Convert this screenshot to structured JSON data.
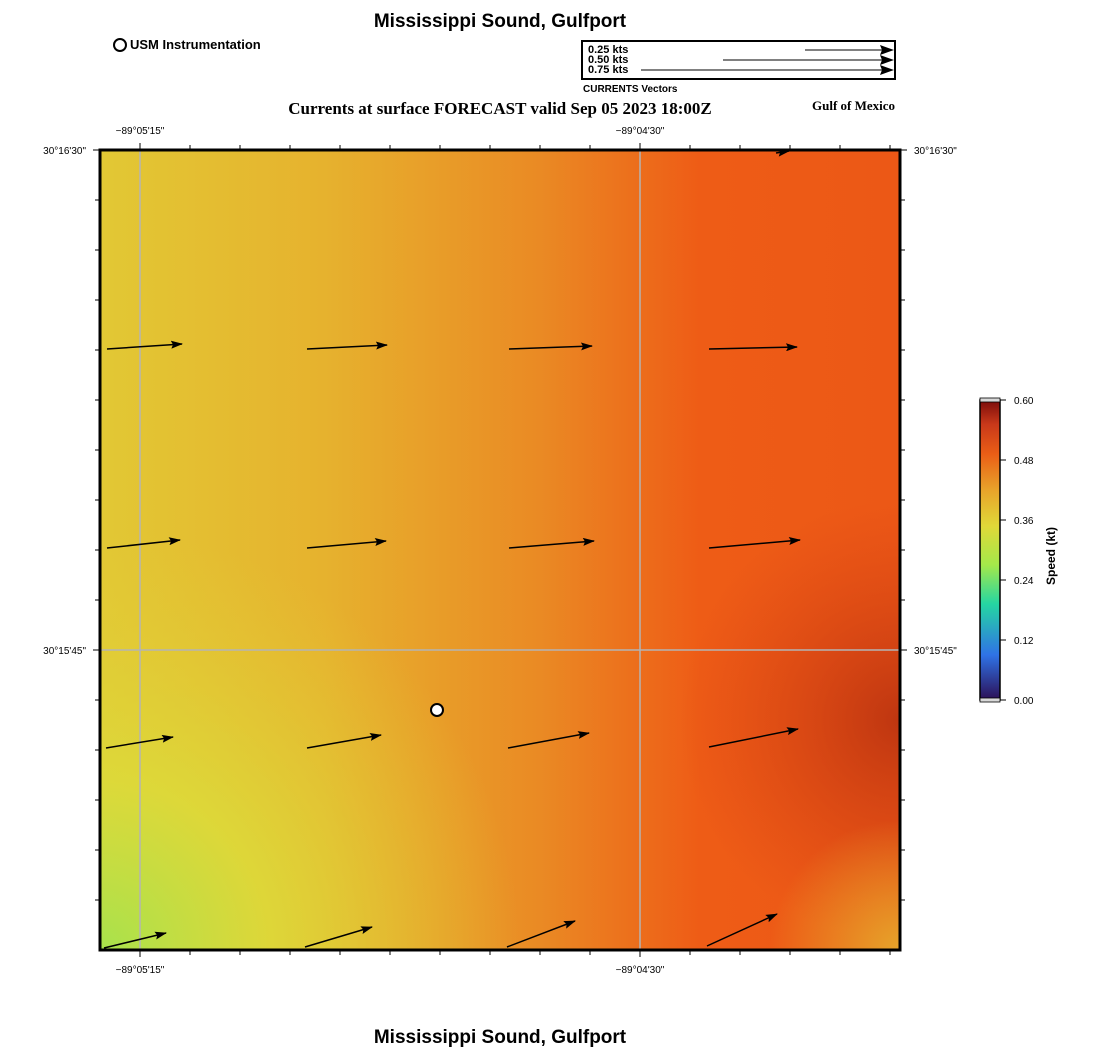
{
  "header": {
    "title": "Mississippi Sound, Gulfport",
    "subtitle": "Currents at surface FORECAST valid Sep 05 2023 18:00Z",
    "region_label": "Gulf of Mexico"
  },
  "footer": {
    "title": "Mississippi Sound, Gulfport"
  },
  "station_legend": {
    "label": "USM Instrumentation"
  },
  "vector_legend": {
    "caption": "CURRENTS Vectors",
    "entries": [
      {
        "label": "0.25 kts",
        "speed": 0.25
      },
      {
        "label": "0.50 kts",
        "speed": 0.5
      },
      {
        "label": "0.75 kts",
        "speed": 0.75
      }
    ]
  },
  "map": {
    "x_ticks": [
      "−89°05'15\"",
      "−89°04'30\""
    ],
    "y_ticks": [
      "30°16'30\"",
      "30°15'45\""
    ]
  },
  "colorbar": {
    "label": "Speed (kt)",
    "ticks": [
      "0.60",
      "0.48",
      "0.36",
      "0.24",
      "0.12",
      "0.00"
    ],
    "range": [
      0,
      0.6
    ],
    "colors": [
      "#2c0f55",
      "#2f72e6",
      "#25d6a2",
      "#a4e84a",
      "#e0d838",
      "#e8a32a",
      "#ea5e16",
      "#c8381a",
      "#7a0b0a"
    ]
  },
  "colors": {
    "speed_low": "#a8e24c",
    "speed_mid": "#e6c834",
    "speed_high": "#ee5b16",
    "speed_max": "#c43a10",
    "gridline": "#b4b4b4",
    "station_fill": "#ffffff"
  }
}
